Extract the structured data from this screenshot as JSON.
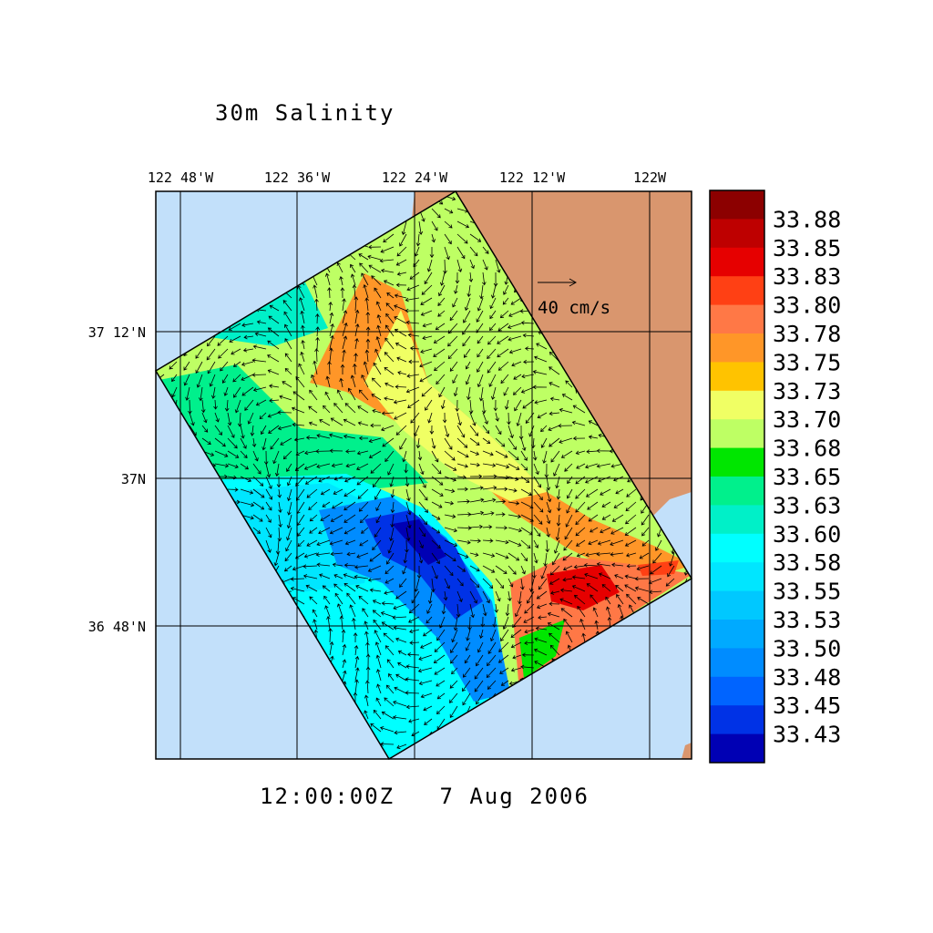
{
  "title": "30m Salinity",
  "lon_ticks": [
    "122 48'W",
    "122 36'W",
    "122 24'W",
    "122 12'W",
    "122W"
  ],
  "lat_ticks": [
    "37 12'N",
    "37N",
    "36 48'N"
  ],
  "vector_scale": "40 cm/s",
  "timestamp": "12:00:00Z   7 Aug 2006",
  "colorbar": {
    "labels": [
      "33.88",
      "33.85",
      "33.83",
      "33.80",
      "33.78",
      "33.75",
      "33.73",
      "33.70",
      "33.68",
      "33.65",
      "33.63",
      "33.60",
      "33.58",
      "33.55",
      "33.53",
      "33.50",
      "33.48",
      "33.45",
      "33.43"
    ],
    "colors": [
      "#8c0000",
      "#be0000",
      "#e60000",
      "#ff4014",
      "#ff7846",
      "#ff9628",
      "#ffc300",
      "#f0ff64",
      "#beff64",
      "#00e600",
      "#00f08c",
      "#00f0c8",
      "#00ffff",
      "#00e6ff",
      "#00c8ff",
      "#00aaff",
      "#008cff",
      "#0064ff",
      "#0032e6",
      "#0000b4"
    ]
  }
}
